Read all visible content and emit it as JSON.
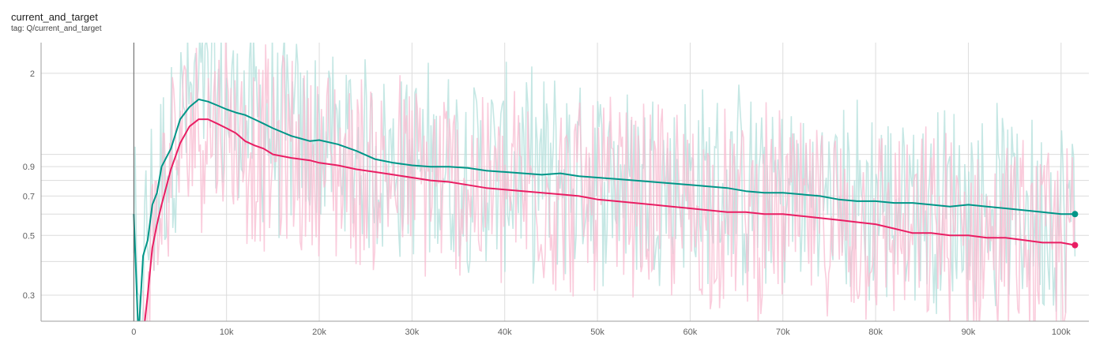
{
  "card": {
    "title": "current_and_target",
    "tag": "tag: Q/current_and_target"
  },
  "chart_data": {
    "type": "line",
    "title": "current_and_target",
    "subtitle": "tag: Q/current_and_target",
    "xlabel": "",
    "ylabel": "",
    "y_scale": "log",
    "xlim": [
      -10000,
      103000
    ],
    "ylim": [
      0.24,
      2.6
    ],
    "x_ticks": [
      0,
      10000,
      20000,
      30000,
      40000,
      50000,
      60000,
      70000,
      80000,
      90000,
      100000
    ],
    "x_tick_labels": [
      "0",
      "10k",
      "20k",
      "30k",
      "40k",
      "50k",
      "60k",
      "70k",
      "80k",
      "90k",
      "100k"
    ],
    "y_ticks": [
      0.3,
      0.5,
      0.7,
      0.9,
      2
    ],
    "y_tick_labels": [
      "0.3",
      "0.5",
      "0.7",
      "0.9",
      "2"
    ],
    "y_minor_grid": [
      0.4,
      0.6,
      0.8,
      1
    ],
    "grid": true,
    "legend": "none",
    "series": [
      {
        "color": "#009688",
        "raw_color": "#b2dfdb",
        "x": [
          0,
          500,
          1000,
          1500,
          2000,
          2500,
          3000,
          4000,
          5000,
          6000,
          7000,
          8000,
          9000,
          10000,
          11000,
          12000,
          13000,
          14000,
          15000,
          17000,
          19000,
          20000,
          22000,
          24000,
          26000,
          28000,
          30000,
          32000,
          34000,
          36000,
          38000,
          40000,
          42000,
          44000,
          46000,
          48000,
          50000,
          52000,
          54000,
          56000,
          58000,
          60000,
          62000,
          64000,
          66000,
          68000,
          70000,
          72000,
          74000,
          76000,
          78000,
          80000,
          82000,
          84000,
          86000,
          88000,
          90000,
          92000,
          94000,
          96000,
          98000,
          100000,
          101500
        ],
        "values": [
          0.6,
          0.12,
          0.42,
          0.48,
          0.65,
          0.72,
          0.9,
          1.05,
          1.35,
          1.5,
          1.6,
          1.57,
          1.52,
          1.47,
          1.43,
          1.4,
          1.35,
          1.3,
          1.25,
          1.17,
          1.12,
          1.13,
          1.09,
          1.03,
          0.96,
          0.93,
          0.91,
          0.9,
          0.9,
          0.89,
          0.87,
          0.86,
          0.85,
          0.84,
          0.85,
          0.83,
          0.82,
          0.81,
          0.8,
          0.79,
          0.78,
          0.77,
          0.76,
          0.75,
          0.73,
          0.72,
          0.72,
          0.71,
          0.7,
          0.68,
          0.67,
          0.67,
          0.66,
          0.66,
          0.65,
          0.64,
          0.65,
          0.64,
          0.63,
          0.62,
          0.61,
          0.6,
          0.6
        ]
      },
      {
        "color": "#e91e63",
        "raw_color": "#f8bbd0",
        "x": [
          1000,
          1500,
          2000,
          2500,
          3000,
          4000,
          5000,
          6000,
          7000,
          8000,
          9000,
          10000,
          11000,
          12000,
          13000,
          14000,
          15000,
          17000,
          19000,
          20000,
          22000,
          24000,
          26000,
          28000,
          30000,
          32000,
          34000,
          36000,
          38000,
          40000,
          42000,
          44000,
          46000,
          48000,
          50000,
          52000,
          54000,
          56000,
          58000,
          60000,
          62000,
          64000,
          66000,
          68000,
          70000,
          72000,
          74000,
          76000,
          78000,
          80000,
          82000,
          84000,
          86000,
          88000,
          90000,
          92000,
          94000,
          96000,
          98000,
          100000,
          101500
        ],
        "values": [
          0.2,
          0.3,
          0.45,
          0.55,
          0.65,
          0.88,
          1.1,
          1.27,
          1.35,
          1.35,
          1.3,
          1.25,
          1.2,
          1.12,
          1.08,
          1.05,
          1.0,
          0.97,
          0.95,
          0.93,
          0.91,
          0.88,
          0.86,
          0.84,
          0.82,
          0.8,
          0.79,
          0.77,
          0.75,
          0.74,
          0.73,
          0.72,
          0.71,
          0.7,
          0.68,
          0.67,
          0.66,
          0.65,
          0.64,
          0.63,
          0.62,
          0.61,
          0.61,
          0.6,
          0.6,
          0.59,
          0.58,
          0.57,
          0.56,
          0.55,
          0.53,
          0.51,
          0.51,
          0.5,
          0.5,
          0.49,
          0.49,
          0.48,
          0.47,
          0.47,
          0.46
        ]
      }
    ]
  }
}
